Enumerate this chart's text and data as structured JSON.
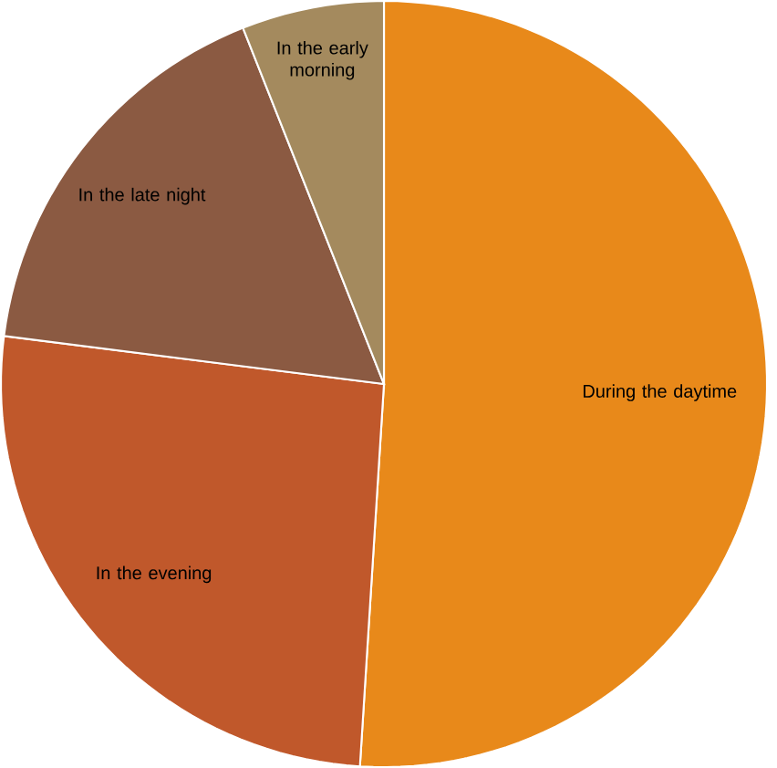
{
  "chart_data": {
    "type": "pie",
    "categories": [
      "During the daytime",
      "In the evening",
      "In the late night",
      "In the early morning"
    ],
    "values": [
      51,
      26,
      17,
      6
    ],
    "colors": [
      "#e8891a",
      "#c0582b",
      "#8b5a42",
      "#a48a5e"
    ]
  }
}
